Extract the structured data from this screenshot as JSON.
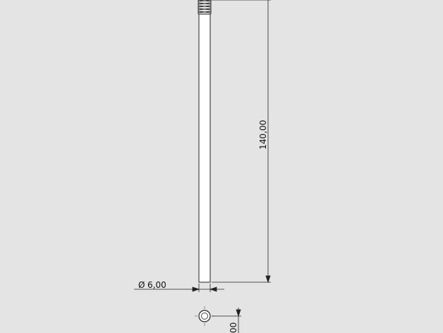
{
  "drawing": {
    "dimensions": {
      "length": {
        "value": "140,00"
      },
      "diameter": {
        "symbol": "Ø",
        "value": "6,00"
      },
      "end_view": {
        "value": "00"
      }
    }
  }
}
